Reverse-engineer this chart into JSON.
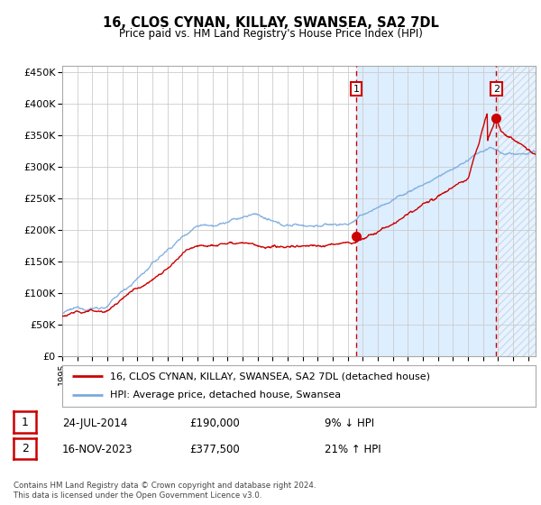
{
  "title": "16, CLOS CYNAN, KILLAY, SWANSEA, SA2 7DL",
  "subtitle": "Price paid vs. HM Land Registry's House Price Index (HPI)",
  "legend_line1": "16, CLOS CYNAN, KILLAY, SWANSEA, SA2 7DL (detached house)",
  "legend_line2": "HPI: Average price, detached house, Swansea",
  "annotation1_date": "24-JUL-2014",
  "annotation1_price": "£190,000",
  "annotation1_hpi": "9% ↓ HPI",
  "annotation2_date": "16-NOV-2023",
  "annotation2_price": "£377,500",
  "annotation2_hpi": "21% ↑ HPI",
  "footer": "Contains HM Land Registry data © Crown copyright and database right 2024.\nThis data is licensed under the Open Government Licence v3.0.",
  "hpi_color": "#7aaadd",
  "price_color": "#cc0000",
  "bg_color": "#ffffff",
  "shaded_bg_color": "#ddeeff",
  "grid_color": "#cccccc",
  "ylim": [
    0,
    460000
  ],
  "yticks": [
    0,
    50000,
    100000,
    150000,
    200000,
    250000,
    300000,
    350000,
    400000,
    450000
  ],
  "sale1_x": 2014.56,
  "sale1_y": 190000,
  "sale2_x": 2023.88,
  "sale2_y": 377500,
  "xmin": 1995.0,
  "xmax": 2026.5
}
